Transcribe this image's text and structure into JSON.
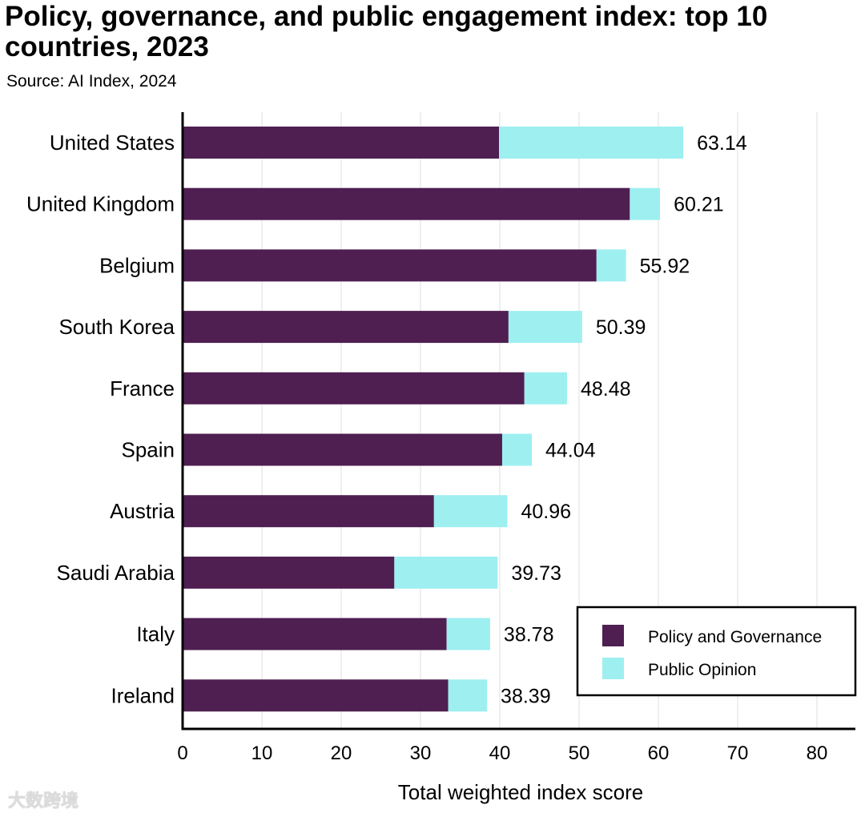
{
  "chart_data": {
    "type": "bar",
    "orientation": "horizontal",
    "stacked": true,
    "title": "Policy, governance, and public engagement index: top 10 countries, 2023",
    "subtitle": "Source: AI Index, 2024",
    "xlabel": "Total weighted index score",
    "ylabel": "",
    "xlim": [
      0,
      85
    ],
    "xticks": [
      0,
      10,
      20,
      30,
      40,
      50,
      60,
      70,
      80
    ],
    "grid": true,
    "legend_position": "bottom-right",
    "categories": [
      "United States",
      "United Kingdom",
      "Belgium",
      "South Korea",
      "France",
      "Spain",
      "Austria",
      "Saudi Arabia",
      "Italy",
      "Ireland"
    ],
    "series": [
      {
        "name": "Policy and Governance",
        "color": "#4f1f51",
        "values": [
          39.9,
          56.4,
          52.2,
          41.1,
          43.1,
          40.3,
          31.7,
          26.7,
          33.3,
          33.5
        ]
      },
      {
        "name": "Public Opinion",
        "color": "#9eeff0",
        "values": [
          23.24,
          3.81,
          3.72,
          9.29,
          5.38,
          3.74,
          9.26,
          13.03,
          5.48,
          4.89
        ]
      }
    ],
    "totals": [
      "63.14",
      "60.21",
      "55.92",
      "50.39",
      "48.48",
      "44.04",
      "40.96",
      "39.73",
      "38.78",
      "38.39"
    ]
  },
  "watermark": "大数跨境"
}
